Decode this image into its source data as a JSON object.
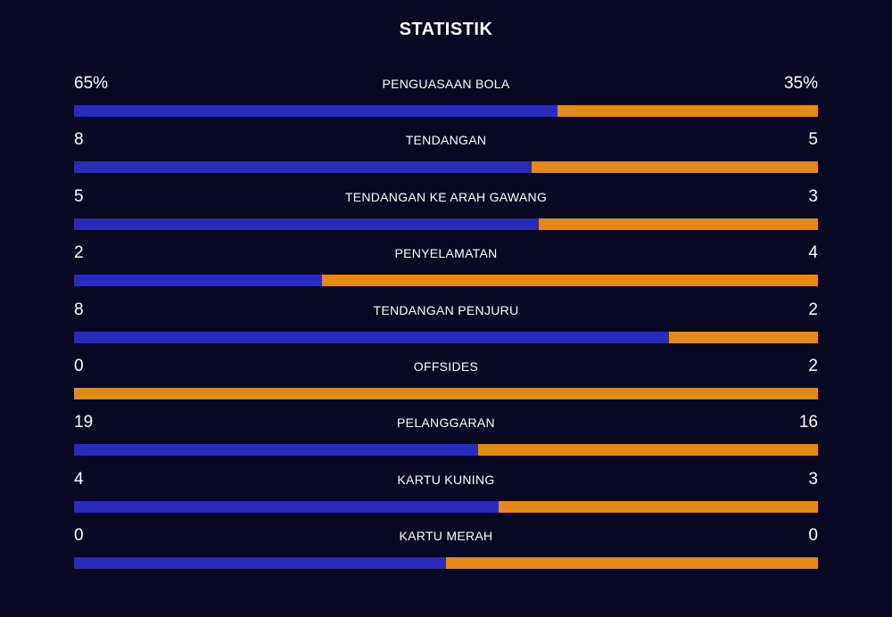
{
  "title": "STATISTIK",
  "colors": {
    "background": "#080822",
    "home": "#2A2ABD",
    "away": "#E58A14"
  },
  "stats": [
    {
      "label": "PENGUASAAN BOLA",
      "home": "65%",
      "away": "35%",
      "home_share": 0.65
    },
    {
      "label": "TENDANGAN",
      "home": "8",
      "away": "5",
      "home_share": 0.615
    },
    {
      "label": "TENDANGAN KE ARAH GAWANG",
      "home": "5",
      "away": "3",
      "home_share": 0.625
    },
    {
      "label": "PENYELAMATAN",
      "home": "2",
      "away": "4",
      "home_share": 0.333
    },
    {
      "label": "TENDANGAN PENJURU",
      "home": "8",
      "away": "2",
      "home_share": 0.8
    },
    {
      "label": "OFFSIDES",
      "home": "0",
      "away": "2",
      "home_share": 0.0
    },
    {
      "label": "PELANGGARAN",
      "home": "19",
      "away": "16",
      "home_share": 0.543
    },
    {
      "label": "KARTU KUNING",
      "home": "4",
      "away": "3",
      "home_share": 0.571
    },
    {
      "label": "KARTU MERAH",
      "home": "0",
      "away": "0",
      "home_share": 0.5
    }
  ]
}
